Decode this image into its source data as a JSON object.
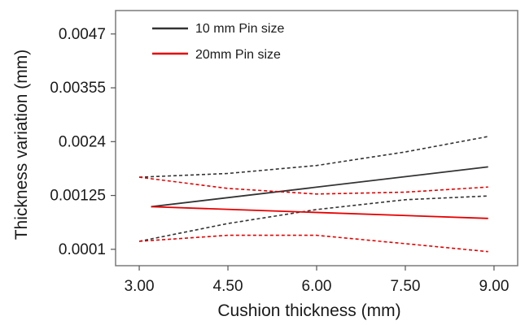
{
  "chart_data": {
    "type": "line",
    "xlabel": "Cushion thickness (mm)",
    "ylabel": "Thickness variation (mm)",
    "x_ticks": [
      "3.00",
      "4.50",
      "6.00",
      "7.50",
      "9.00"
    ],
    "y_ticks": [
      "0.0001",
      "0.00125",
      "0.0024",
      "0.00355",
      "0.0047"
    ],
    "xlim": [
      2.6,
      9.4
    ],
    "ylim": [
      -0.00025,
      0.0052
    ],
    "grid": false,
    "legend_position": "top-left",
    "series": [
      {
        "name": "10 mm Pin size",
        "color": "#333333",
        "x": [
          3.2,
          8.9
        ],
        "y": [
          0.00101,
          0.00186
        ],
        "ci_lower": {
          "x": [
            3.0,
            4.5,
            6.0,
            7.5,
            8.9
          ],
          "y": [
            0.00027,
            0.00065,
            0.00095,
            0.00116,
            0.00124
          ]
        },
        "ci_upper": {
          "x": [
            3.0,
            4.5,
            6.0,
            7.5,
            8.9
          ],
          "y": [
            0.00164,
            0.00172,
            0.00189,
            0.00218,
            0.00251
          ]
        }
      },
      {
        "name": "20mm Pin size",
        "color": "#e60000",
        "x": [
          3.2,
          8.9
        ],
        "y": [
          0.00101,
          0.00076
        ],
        "ci_lower": {
          "x": [
            3.0,
            4.5,
            6.0,
            7.5,
            8.9
          ],
          "y": [
            0.00027,
            0.0004,
            0.0004,
            0.00022,
            5e-05
          ]
        },
        "ci_upper": {
          "x": [
            3.0,
            4.5,
            6.0,
            7.5,
            8.9
          ],
          "y": [
            0.00164,
            0.0014,
            0.00128,
            0.00132,
            0.00143
          ]
        }
      }
    ]
  }
}
